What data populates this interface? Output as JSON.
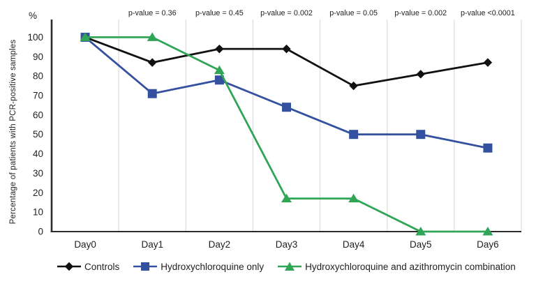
{
  "figure": {
    "y_unit": "%"
  },
  "chart_data": {
    "type": "line",
    "title": "",
    "xlabel": "",
    "ylabel": "Percentage of patients with PCR-positive samples",
    "categories": [
      "Day0",
      "Day1",
      "Day2",
      "Day3",
      "Day4",
      "Day5",
      "Day6"
    ],
    "series": [
      {
        "id": "controls",
        "name": "Controls",
        "marker": "diamond",
        "color": "#111111",
        "values": [
          100,
          87,
          94,
          94,
          75,
          81,
          87
        ]
      },
      {
        "id": "hydroxychloroquine-only",
        "name": "Hydroxychloroquine only",
        "marker": "square",
        "color": "#33519e",
        "values": [
          100,
          71,
          78,
          64,
          50,
          50,
          43
        ]
      },
      {
        "id": "hydroxychloroquine-azithromycin-combination",
        "name": "Hydroxychloroquine and azithromycin combination",
        "marker": "triangle",
        "color": "#2fa555",
        "values": [
          100,
          100,
          83,
          17,
          17,
          0,
          0
        ]
      }
    ],
    "p_values": [
      {
        "category": "Day1",
        "label": "p-value = 0.36"
      },
      {
        "category": "Day2",
        "label": "p-value = 0.45"
      },
      {
        "category": "Day3",
        "label": "p-value = 0.002"
      },
      {
        "category": "Day4",
        "label": "p-value = 0.05"
      },
      {
        "category": "Day5",
        "label": "p-value = 0.002"
      },
      {
        "category": "Day6",
        "label": "p-value <0.0001"
      }
    ],
    "ylim": [
      0,
      100
    ],
    "yticks": [
      0,
      10,
      20,
      30,
      40,
      50,
      60,
      70,
      80,
      90,
      100
    ],
    "grid": "vertical-between-categories",
    "legend_position": "bottom",
    "colors": {
      "grid": "#dcdcdc",
      "axis": "#2b2b2b",
      "text": "#1f1f1f"
    }
  }
}
